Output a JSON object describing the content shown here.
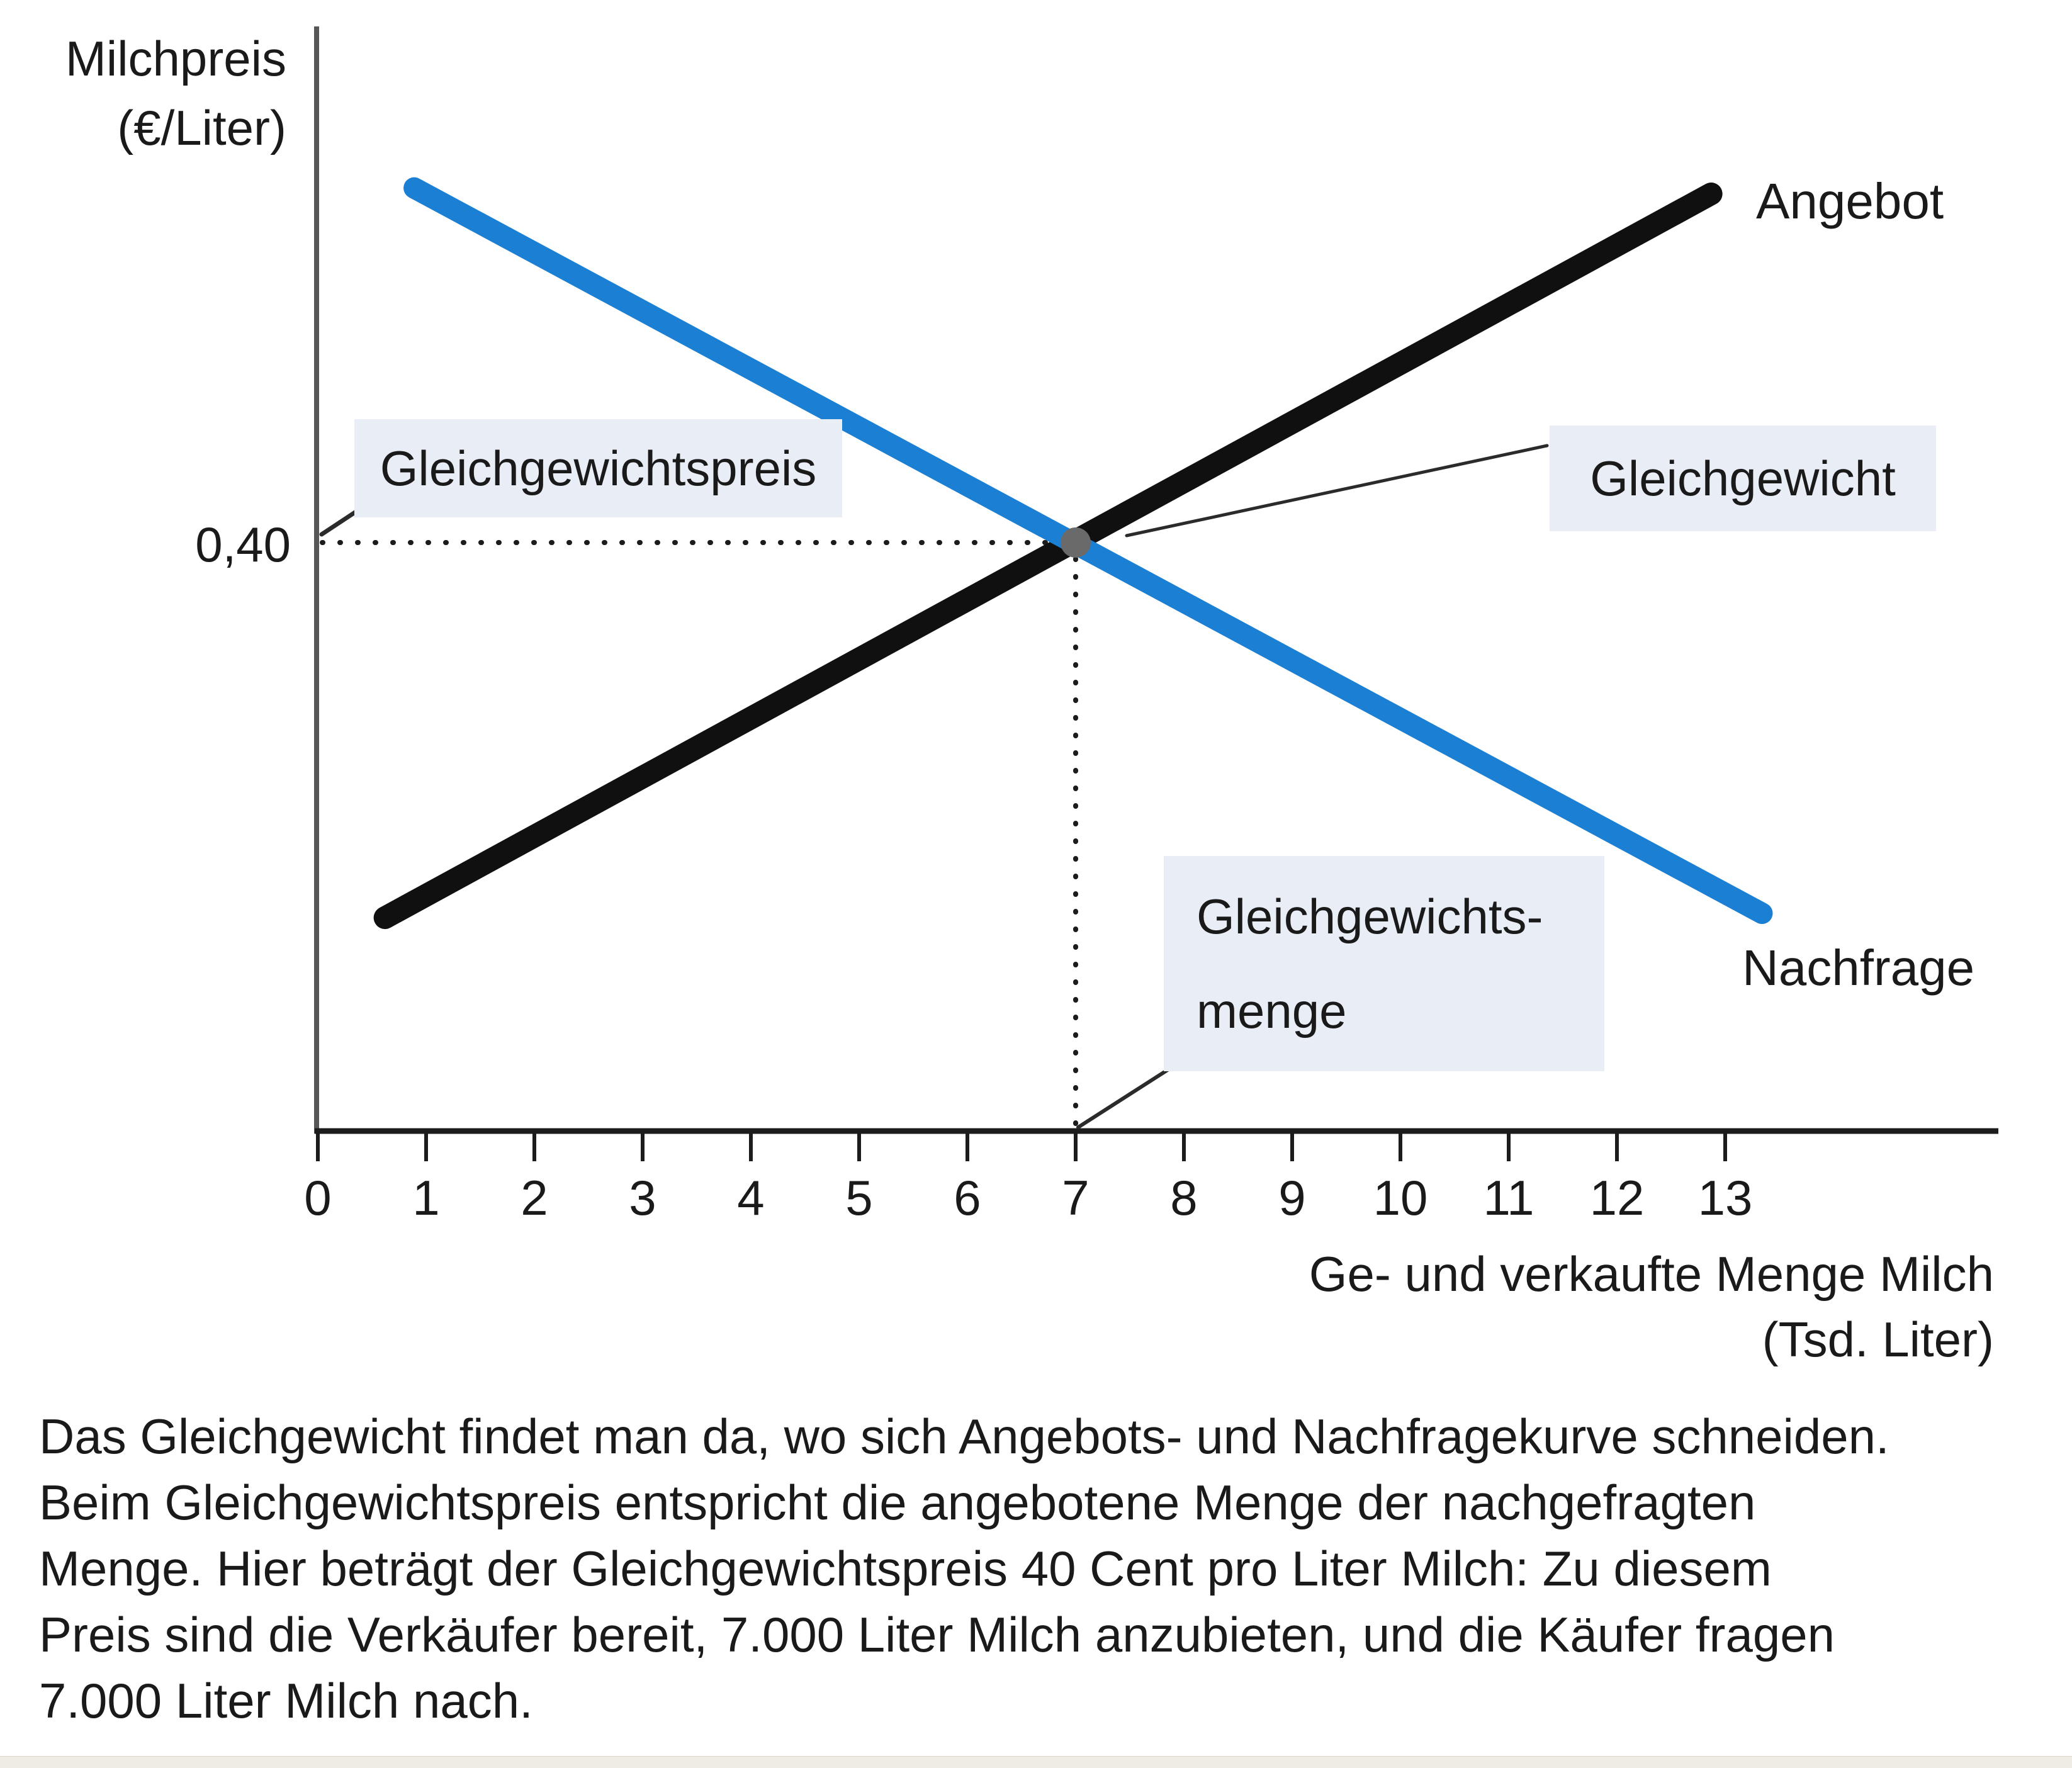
{
  "figure": {
    "y_axis_title_line1": "Milchpreis",
    "y_axis_title_line2": "(€/Liter)",
    "x_axis_title_line1": "Ge- und verkaufte Menge Milch",
    "x_axis_title_line2": "(Tsd. Liter)",
    "annotation_bg": "#e8edf6",
    "annotations": {
      "equilibrium_price_label": "Gleichgewichtspreis",
      "equilibrium_label": "Gleichgewicht",
      "equilibrium_quantity_line1": "Gleichgewichts-",
      "equilibrium_quantity_line2": "menge",
      "supply_label": "Angebot",
      "demand_label": "Nachfrage",
      "y_value_label": "0,40"
    }
  },
  "chart_data": {
    "type": "line",
    "title": "",
    "xlabel": "Ge- und verkaufte Menge Milch (Tsd. Liter)",
    "ylabel": "Milchpreis (€/Liter)",
    "x_ticks": [
      "0",
      "1",
      "2",
      "3",
      "4",
      "5",
      "6",
      "7",
      "8",
      "9",
      "10",
      "11",
      "12",
      "13"
    ],
    "xlim": [
      0,
      15.5
    ],
    "ylim": [
      0,
      0.77
    ],
    "grid": false,
    "legend_position": "inline-curve-labels",
    "series": [
      {
        "name": "Angebot",
        "color": "#101010",
        "points": [
          [
            0.62,
            0.145
          ],
          [
            12.87,
            0.637
          ]
        ]
      },
      {
        "name": "Nachfrage",
        "color": "#1b80d3",
        "points": [
          [
            0.89,
            0.641
          ],
          [
            13.34,
            0.148
          ]
        ]
      }
    ],
    "equilibrium": {
      "quantity": 7,
      "price": 0.4,
      "price_display": "0,40",
      "quantity_display": "7",
      "dot_color": "#6a6a6a"
    }
  },
  "caption": {
    "lines": [
      "Das Gleichgewicht findet man da, wo sich Angebots- und Nachfragekurve schneiden.",
      "Beim Gleichgewichtspreis entspricht die angebotene Menge der nachgefragten",
      "Menge. Hier beträgt der Gleichgewichtspreis 40 Cent pro Liter Milch: Zu diesem",
      "Preis sind die Verkäufer bereit, 7.000 Liter Milch anzubieten, und die Käufer fragen",
      "7.000 Liter Milch nach."
    ]
  }
}
